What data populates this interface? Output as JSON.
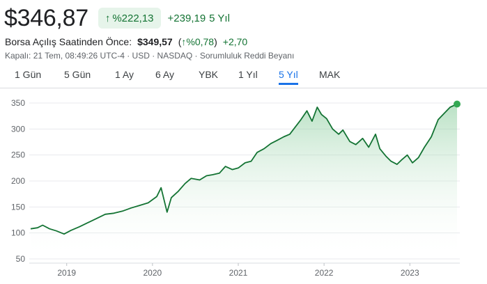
{
  "quote": {
    "price": "$346,87",
    "change_pct": "%222,13",
    "change_abs": "+239,19",
    "period": "5 Yıl"
  },
  "premarket": {
    "label": "Borsa Açılış Saatinden Önce:",
    "price": "$349,57",
    "pct_open": "(",
    "pct_arrow": "↑",
    "pct_value": "%0,78",
    "pct_close": ")",
    "change": "+2,70"
  },
  "meta": {
    "text": "Kapalı: 21 Tem, 08:49:26 UTC-4 · USD · NASDAQ · Sorumluluk Reddi Beyanı"
  },
  "tabs": [
    {
      "label": "1 Gün"
    },
    {
      "label": "5 Gün"
    },
    {
      "label": "1 Ay"
    },
    {
      "label": "6 Ay"
    },
    {
      "label": "YBK"
    },
    {
      "label": "1 Yıl"
    },
    {
      "label": "5 Yıl",
      "active": true
    },
    {
      "label": "MAK"
    }
  ],
  "colors": {
    "line": "#137333",
    "area_top": "#81c995",
    "badge_bg": "#e6f4ea",
    "active_tab": "#1a73e8"
  },
  "chart_data": {
    "type": "area",
    "ylim": [
      50,
      350
    ],
    "yticks": [
      "350",
      "300",
      "250",
      "200",
      "150",
      "100",
      "50"
    ],
    "xticks": [
      "2019",
      "2020",
      "2021",
      "2022",
      "2023"
    ],
    "grid": true,
    "x_range": [
      2018.58,
      2023.55
    ],
    "series": [
      {
        "x": [
          2018.58,
          2018.66,
          2018.72,
          2018.8,
          2018.88,
          2018.97,
          2019.05,
          2019.15,
          2019.25,
          2019.35,
          2019.45,
          2019.55,
          2019.65,
          2019.75,
          2019.85,
          2019.95,
          2020.05,
          2020.1,
          2020.17,
          2020.22,
          2020.3,
          2020.38,
          2020.45,
          2020.55,
          2020.63,
          2020.7,
          2020.78,
          2020.85,
          2020.93,
          2021.0,
          2021.08,
          2021.15,
          2021.22,
          2021.3,
          2021.38,
          2021.45,
          2021.53,
          2021.6,
          2021.67,
          2021.73,
          2021.8,
          2021.86,
          2021.92,
          2021.97,
          2022.03,
          2022.1,
          2022.17,
          2022.22,
          2022.3,
          2022.37,
          2022.45,
          2022.52,
          2022.6,
          2022.65,
          2022.72,
          2022.78,
          2022.85,
          2022.9,
          2022.97,
          2023.03,
          2023.1,
          2023.17,
          2023.25,
          2023.33,
          2023.4,
          2023.47,
          2023.55
        ],
        "y": [
          108,
          110,
          115,
          108,
          104,
          98,
          105,
          112,
          120,
          128,
          136,
          138,
          142,
          148,
          153,
          158,
          170,
          187,
          140,
          168,
          180,
          195,
          205,
          202,
          210,
          212,
          215,
          228,
          222,
          225,
          235,
          238,
          255,
          262,
          272,
          278,
          285,
          290,
          305,
          318,
          335,
          315,
          342,
          328,
          320,
          300,
          290,
          298,
          276,
          270,
          282,
          265,
          290,
          262,
          248,
          238,
          232,
          240,
          250,
          235,
          245,
          265,
          285,
          318,
          330,
          342,
          348
        ]
      }
    ]
  }
}
